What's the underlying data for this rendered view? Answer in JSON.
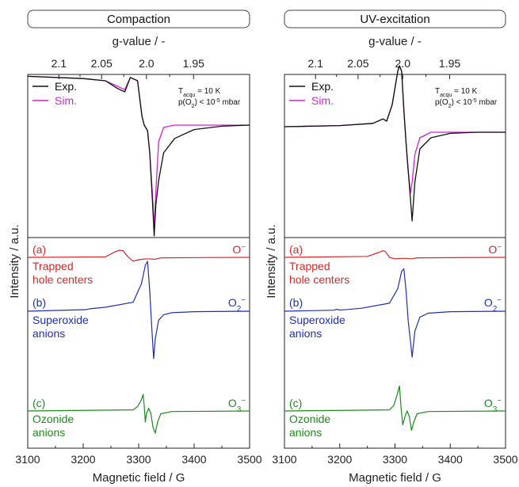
{
  "y_axis_label": "Intensity / a.u.",
  "panels": [
    {
      "title": "Compaction",
      "top_axis_label": "g-value / -",
      "g_ticks": [
        "2.1",
        "2.05",
        "2.0",
        "1.95"
      ],
      "x_axis_label": "Magnetic field / G",
      "x_ticks": [
        "3100",
        "3200",
        "3300",
        "3400",
        "3500"
      ],
      "legend": {
        "exp": "Exp.",
        "sim": "Sim."
      },
      "conditions": {
        "line1": "T",
        "line1_sub": "acqu",
        "line1_rest": " = 10 K",
        "line2": "p(O",
        "line2_sub": "2",
        "line2_rest": ") < 10",
        "line2_sup": "-5",
        "line2_end": " mbar"
      },
      "components": [
        {
          "letter": "(a)",
          "name1": "Trapped",
          "name2": "hole centers",
          "species": "O",
          "species_sub": "",
          "species_sup": "−"
        },
        {
          "letter": "(b)",
          "name1": "Superoxide",
          "name2": "anions",
          "species": "O",
          "species_sub": "2",
          "species_sup": "−"
        },
        {
          "letter": "(c)",
          "name1": "Ozonide",
          "name2": "anions",
          "species": "O",
          "species_sub": "3",
          "species_sup": "−"
        }
      ]
    },
    {
      "title": "UV-excitation",
      "top_axis_label": "g-value / -",
      "g_ticks": [
        "2.1",
        "2.05",
        "2.0",
        "1.95"
      ],
      "x_axis_label": "Magnetic field / G",
      "x_ticks": [
        "3100",
        "3200",
        "3300",
        "3400",
        "3500"
      ],
      "legend": {
        "exp": "Exp.",
        "sim": "Sim."
      },
      "conditions": {
        "line1": "T",
        "line1_sub": "acqu",
        "line1_rest": " = 10 K",
        "line2": "p(O",
        "line2_sub": "2",
        "line2_rest": ") < 10",
        "line2_sup": "-5",
        "line2_end": " mbar"
      },
      "components": [
        {
          "letter": "(a)",
          "name1": "Trapped",
          "name2": "hole centers",
          "species": "O",
          "species_sub": "",
          "species_sup": "−"
        },
        {
          "letter": "(b)",
          "name1": "Superoxide",
          "name2": "anions",
          "species": "O",
          "species_sub": "2",
          "species_sup": "−"
        },
        {
          "letter": "(c)",
          "name1": "Ozonide",
          "name2": "anions",
          "species": "O",
          "species_sub": "3",
          "species_sup": "−"
        }
      ]
    }
  ],
  "colors": {
    "exp": "#111111",
    "sim": "#d61fd6",
    "a": "#d62728",
    "b": "#1f2fb0",
    "c": "#1a8c1a"
  },
  "chart_data": [
    {
      "type": "line",
      "title": "Compaction",
      "xlabel": "Magnetic field / G",
      "ylabel": "Intensity / a.u.",
      "top_axis": {
        "label": "g-value / -",
        "ticks": [
          2.1,
          2.05,
          2.0,
          1.95
        ]
      },
      "xlim": [
        3100,
        3500
      ],
      "grid": false,
      "legend": "top-left",
      "series": [
        {
          "name": "Exp.",
          "x": [
            3100,
            3200,
            3240,
            3262,
            3275,
            3285,
            3298,
            3306,
            3310,
            3316,
            3320,
            3325,
            3328,
            3331,
            3336,
            3345,
            3365,
            3400,
            3450,
            3500
          ],
          "y": [
            0.44,
            0.42,
            0.4,
            0.33,
            0.3,
            0.43,
            0.4,
            0.08,
            0.0,
            -0.05,
            -0.25,
            -0.7,
            -1.0,
            -0.72,
            -0.5,
            -0.25,
            -0.12,
            -0.04,
            -0.01,
            0.0
          ]
        },
        {
          "name": "Sim.",
          "x": [
            3100,
            3200,
            3240,
            3262,
            3275,
            3285,
            3298,
            3306,
            3310,
            3316,
            3320,
            3325,
            3328,
            3331,
            3336,
            3345,
            3365,
            3400,
            3450,
            3500
          ],
          "y": [
            0.44,
            0.42,
            0.4,
            0.35,
            0.32,
            0.43,
            0.4,
            0.08,
            0.0,
            -0.05,
            -0.25,
            -0.64,
            -0.92,
            -0.6,
            -0.15,
            -0.02,
            0.0,
            0.0,
            0.0,
            0.0
          ]
        },
        {
          "name": "(a) Trapped hole centers",
          "x": [
            3100,
            3240,
            3258,
            3266,
            3272,
            3280,
            3290,
            3300,
            3315,
            3330,
            3340,
            3500
          ],
          "y": [
            0.0,
            0.01,
            0.12,
            0.15,
            0.14,
            0.02,
            -0.08,
            -0.05,
            -0.03,
            -0.04,
            -0.01,
            0.0
          ]
        },
        {
          "name": "(b) Superoxide anions",
          "x": [
            3100,
            3200,
            3205,
            3212,
            3240,
            3290,
            3305,
            3312,
            3316,
            3320,
            3324,
            3327,
            3330,
            3336,
            3345,
            3360,
            3400,
            3500
          ],
          "y": [
            0.0,
            0.03,
            0.03,
            0.05,
            0.08,
            0.18,
            0.55,
            0.92,
            1.0,
            0.4,
            -0.4,
            -0.95,
            -0.55,
            -0.18,
            -0.07,
            -0.03,
            -0.01,
            0.0
          ]
        },
        {
          "name": "(c) Ozonide anions",
          "x": [
            3100,
            3290,
            3298,
            3305,
            3308,
            3310,
            3312,
            3314,
            3318,
            3322,
            3326,
            3330,
            3334,
            3340,
            3360,
            3500
          ],
          "y": [
            0.0,
            0.02,
            0.08,
            0.2,
            0.3,
            0.1,
            -0.2,
            -0.05,
            0.05,
            -0.05,
            -0.3,
            -0.4,
            -0.2,
            -0.05,
            -0.01,
            0.0
          ]
        }
      ]
    },
    {
      "type": "line",
      "title": "UV-excitation",
      "xlabel": "Magnetic field / G",
      "ylabel": "Intensity / a.u.",
      "top_axis": {
        "label": "g-value / -",
        "ticks": [
          2.1,
          2.05,
          2.0,
          1.95
        ]
      },
      "xlim": [
        3100,
        3500
      ],
      "grid": false,
      "legend": "top-left",
      "series": [
        {
          "name": "Exp.",
          "x": [
            3100,
            3200,
            3260,
            3278,
            3285,
            3295,
            3305,
            3308,
            3312,
            3316,
            3320,
            3324,
            3328,
            3331,
            3336,
            3345,
            3365,
            3400,
            3450,
            3500
          ],
          "y": [
            0.05,
            0.06,
            0.08,
            0.12,
            0.1,
            0.25,
            0.55,
            0.6,
            0.55,
            0.2,
            -0.1,
            -0.35,
            -0.6,
            -0.8,
            -0.45,
            -0.15,
            -0.05,
            -0.01,
            0.0,
            0.0
          ]
        },
        {
          "name": "Sim.",
          "x": [
            3100,
            3200,
            3260,
            3278,
            3285,
            3295,
            3305,
            3308,
            3312,
            3316,
            3320,
            3324,
            3328,
            3331,
            3336,
            3345,
            3365,
            3400,
            3450,
            3500
          ],
          "y": [
            0.05,
            0.06,
            0.08,
            0.12,
            0.1,
            0.25,
            0.55,
            0.6,
            0.55,
            0.2,
            -0.1,
            -0.35,
            -0.55,
            -0.45,
            -0.2,
            -0.05,
            0.0,
            0.0,
            0.0,
            0.0
          ]
        },
        {
          "name": "(a) Trapped hole centers",
          "x": [
            3100,
            3250,
            3270,
            3278,
            3283,
            3290,
            3300,
            3315,
            3330,
            3340,
            3500
          ],
          "y": [
            0.0,
            0.02,
            0.1,
            0.14,
            0.12,
            0.0,
            -0.03,
            -0.02,
            -0.03,
            -0.01,
            0.0
          ]
        },
        {
          "name": "(b) Superoxide anions",
          "x": [
            3100,
            3190,
            3195,
            3200,
            3240,
            3290,
            3305,
            3312,
            3316,
            3320,
            3324,
            3328,
            3331,
            3336,
            3345,
            3360,
            3400,
            3500
          ],
          "y": [
            0.0,
            0.02,
            0.04,
            0.02,
            0.06,
            0.16,
            0.45,
            0.8,
            0.85,
            0.4,
            -0.2,
            -0.6,
            -0.92,
            -0.4,
            -0.12,
            -0.04,
            -0.01,
            0.0
          ]
        },
        {
          "name": "(c) Ozonide anions",
          "x": [
            3100,
            3290,
            3298,
            3304,
            3308,
            3311,
            3314,
            3318,
            3322,
            3326,
            3330,
            3334,
            3340,
            3360,
            3500
          ],
          "y": [
            0.0,
            0.02,
            0.1,
            0.3,
            0.45,
            0.05,
            -0.25,
            -0.1,
            0.0,
            -0.1,
            -0.35,
            -0.2,
            -0.05,
            -0.01,
            0.0
          ]
        }
      ]
    }
  ]
}
